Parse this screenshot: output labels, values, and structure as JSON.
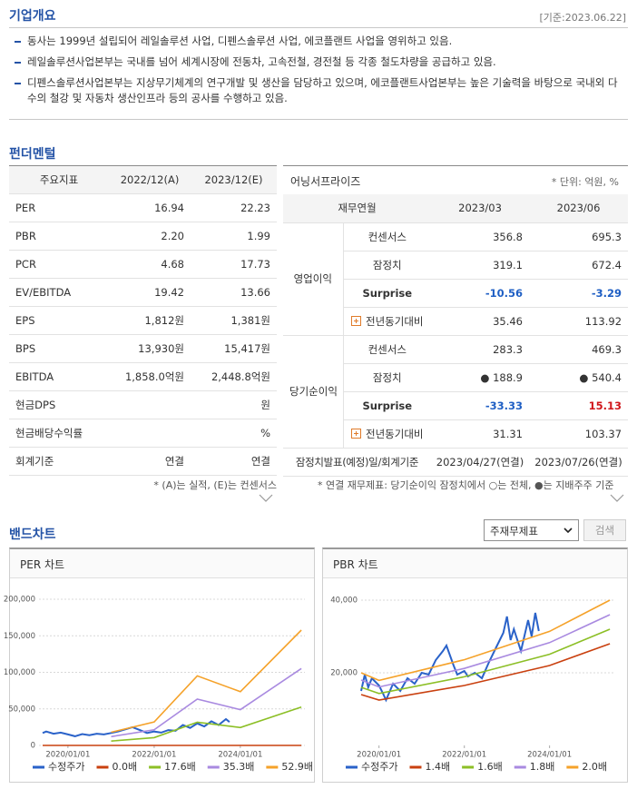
{
  "header": {
    "title": "기업개요",
    "date": "[기준:2023.06.22]"
  },
  "overview": [
    "동사는 1999년 설립되어 레일솔루션 사업, 디펜스솔루션 사업, 에코플랜트 사업을 영위하고 있음.",
    "레일솔루션사업본부는 국내를 넘어 세계시장에 전동차, 고속전철, 경전철 등 각종 철도차량을 공급하고 있음.",
    "디펜스솔루션사업본부는 지상무기체계의 연구개발 및 생산을 담당하고 있으며, 에코플랜트사업본부는 높은 기술력을 바탕으로 국내외 다수의 철강 및 자동차 생산인프라 등의 공사를 수행하고 있음."
  ],
  "fundamental": {
    "title": "펀더멘털",
    "indicators": {
      "columns": [
        "주요지표",
        "2022/12(A)",
        "2023/12(E)"
      ],
      "rows": [
        {
          "name": "PER",
          "a": "16.94",
          "e": "22.23"
        },
        {
          "name": "PBR",
          "a": "2.20",
          "e": "1.99"
        },
        {
          "name": "PCR",
          "a": "4.68",
          "e": "17.73"
        },
        {
          "name": "EV/EBITDA",
          "a": "19.42",
          "e": "13.66"
        },
        {
          "name": "EPS",
          "a": "1,812원",
          "e": "1,381원"
        },
        {
          "name": "BPS",
          "a": "13,930원",
          "e": "15,417원"
        },
        {
          "name": "EBITDA",
          "a": "1,858.0억원",
          "e": "2,448.8억원"
        },
        {
          "name": "현금DPS",
          "e": "원"
        },
        {
          "name": "현금배당수익률",
          "e": "%"
        },
        {
          "name": "회계기준",
          "a": "연결",
          "e": "연결"
        }
      ],
      "note": "* (A)는 실적, (E)는 컨센서스"
    },
    "earnings": {
      "title": "어닝서프라이즈",
      "unit": "* 단위: 억원, %",
      "columns": [
        "재무연월",
        "2023/03",
        "2023/06"
      ],
      "groups": [
        {
          "name": "영업이익",
          "rows": [
            {
              "name": "컨센서스",
              "values": [
                "356.8",
                "695.3"
              ]
            },
            {
              "name": "잠정치",
              "values": [
                "319.1",
                "672.4"
              ]
            },
            {
              "name": "Surprise",
              "values": [
                "-10.56",
                "-3.29"
              ],
              "emphasis": true,
              "colors": [
                "#1f5fc4",
                "#1f5fc4"
              ]
            },
            {
              "name": "전년동기대비",
              "values": [
                "35.46",
                "113.92"
              ],
              "expand": true
            }
          ]
        },
        {
          "name": "당기순이익",
          "rows": [
            {
              "name": "컨센서스",
              "values": [
                "283.3",
                "469.3"
              ]
            },
            {
              "name": "잠정치",
              "values": [
                "● 188.9",
                "● 540.4"
              ]
            },
            {
              "name": "Surprise",
              "values": [
                "-33.33",
                "15.13"
              ],
              "emphasis": true,
              "colors": [
                "#1f5fc4",
                "#d0161b"
              ]
            },
            {
              "name": "전년동기대비",
              "values": [
                "31.31",
                "103.37"
              ],
              "expand": true
            }
          ]
        }
      ],
      "date_row": {
        "name": "잠정치발표(예정)일/회계기준",
        "values": [
          "2023/04/27(연결)",
          "2023/07/26(연결)"
        ]
      },
      "note": "* 연결 재무제표: 당기순이익 잠정치에서 ○는 전체, ●는 지배주주 기준"
    }
  },
  "band": {
    "title": "밴드차트",
    "select": "주재무제표",
    "button": "검색"
  },
  "chart_data": [
    {
      "type": "line",
      "title": "PER 차트",
      "grid": true,
      "xlim": [
        "2019/05/01",
        "2025/07/01"
      ],
      "xticks": [
        "2020/01/01",
        "2022/01/01",
        "2024/01/01"
      ],
      "ylim": [
        0,
        200000
      ],
      "yticks": [
        0,
        {
          "value": 50000,
          "label": "50,000"
        },
        {
          "value": 100000,
          "label": "100,000"
        },
        {
          "value": 150000,
          "label": "150,000"
        },
        {
          "value": 200000,
          "label": "200,000"
        }
      ],
      "series": [
        {
          "name": "수정주가",
          "color": "#2a62c9",
          "x": [
            "2019/06/01",
            "2019/07/01",
            "2019/09/01",
            "2019/11/01",
            "2020/01/01",
            "2020/03/01",
            "2020/05/01",
            "2020/07/01",
            "2020/09/01",
            "2020/11/01",
            "2021/01/01",
            "2021/03/01",
            "2021/05/01",
            "2021/07/01",
            "2021/09/01",
            "2021/11/01",
            "2022/01/01",
            "2022/03/01",
            "2022/05/01",
            "2022/07/01",
            "2022/09/01",
            "2022/11/01",
            "2023/01/01",
            "2023/03/01",
            "2023/05/01",
            "2023/07/01",
            "2023/09/01",
            "2023/10/01"
          ],
          "values": [
            17000,
            19000,
            16000,
            17500,
            15000,
            12500,
            15500,
            14000,
            16000,
            15000,
            17000,
            19000,
            22000,
            25000,
            21000,
            17000,
            19000,
            17500,
            21000,
            20000,
            28000,
            24000,
            30000,
            26000,
            33000,
            28000,
            36000,
            32000
          ]
        },
        {
          "name": "0.0배",
          "color": "#c9400f",
          "x": [
            "2019/06/01",
            "2025/06/01"
          ],
          "values": [
            0,
            0
          ]
        },
        {
          "name": "17.6배",
          "color": "#8cbf26",
          "x": [
            "2021/01/01",
            "2022/01/01",
            "2023/01/01",
            "2024/01/01",
            "2025/06/01"
          ],
          "values": [
            6000,
            10700,
            31700,
            24500,
            52600
          ]
        },
        {
          "name": "35.3배",
          "color": "#a98ae0",
          "x": [
            "2021/01/01",
            "2022/01/01",
            "2023/01/01",
            "2024/01/01",
            "2025/06/01"
          ],
          "values": [
            12000,
            21400,
            63400,
            49000,
            105200
          ]
        },
        {
          "name": "52.9배",
          "color": "#f5a22a",
          "x": [
            "2021/01/01",
            "2022/01/01",
            "2023/01/01",
            "2024/01/01",
            "2025/06/01"
          ],
          "values": [
            18000,
            32100,
            95100,
            73500,
            157800
          ]
        }
      ]
    },
    {
      "type": "line",
      "title": "PBR 차트",
      "grid": true,
      "xlim": [
        "2019/08/01",
        "2025/07/01"
      ],
      "xticks": [
        "2020/01/01",
        "2022/01/01",
        "2024/01/01"
      ],
      "ylim": [
        0,
        40000
      ],
      "yticks": [
        {
          "value": 20000,
          "label": "20,000"
        },
        {
          "value": 40000,
          "label": "40,000"
        }
      ],
      "series": [
        {
          "name": "수정주가",
          "color": "#2a62c9",
          "x": [
            "2019/08/01",
            "2019/09/01",
            "2019/10/01",
            "2019/11/01",
            "2020/01/01",
            "2020/02/01",
            "2020/03/01",
            "2020/05/01",
            "2020/07/01",
            "2020/09/01",
            "2020/11/01",
            "2021/01/01",
            "2021/03/01",
            "2021/05/01",
            "2021/07/01",
            "2021/08/01",
            "2021/10/01",
            "2021/11/01",
            "2022/01/01",
            "2022/02/01",
            "2022/04/01",
            "2022/06/01",
            "2022/08/01",
            "2022/10/01",
            "2022/12/01",
            "2023/01/01",
            "2023/02/01",
            "2023/03/01",
            "2023/05/01",
            "2023/07/01",
            "2023/08/01",
            "2023/09/01",
            "2023/10/01"
          ],
          "values": [
            15000,
            19500,
            16000,
            18500,
            16500,
            14500,
            12500,
            17000,
            15000,
            18500,
            17000,
            20000,
            19500,
            23500,
            26000,
            27500,
            22000,
            19500,
            20500,
            19000,
            20000,
            18500,
            23000,
            27000,
            31000,
            35500,
            29000,
            32000,
            26000,
            34500,
            30000,
            36500,
            31500
          ]
        },
        {
          "name": "1.4배",
          "color": "#c9400f",
          "x": [
            "2019/08/01",
            "2020/01/01",
            "2022/01/01",
            "2024/01/01",
            "2025/06/01"
          ],
          "values": [
            14000,
            12500,
            16500,
            22000,
            28000
          ]
        },
        {
          "name": "1.6배",
          "color": "#8cbf26",
          "x": [
            "2019/08/01",
            "2020/01/01",
            "2022/01/01",
            "2024/01/01",
            "2025/06/01"
          ],
          "values": [
            16000,
            14300,
            18900,
            25100,
            32000
          ]
        },
        {
          "name": "1.8배",
          "color": "#a98ae0",
          "x": [
            "2019/08/01",
            "2020/01/01",
            "2022/01/01",
            "2024/01/01",
            "2025/06/01"
          ],
          "values": [
            18000,
            16100,
            21200,
            28300,
            36000
          ]
        },
        {
          "name": "2.0배",
          "color": "#f5a22a",
          "x": [
            "2019/08/01",
            "2020/01/01",
            "2022/01/01",
            "2024/01/01",
            "2025/06/01"
          ],
          "values": [
            20000,
            17900,
            23600,
            31400,
            40000
          ]
        }
      ]
    }
  ]
}
